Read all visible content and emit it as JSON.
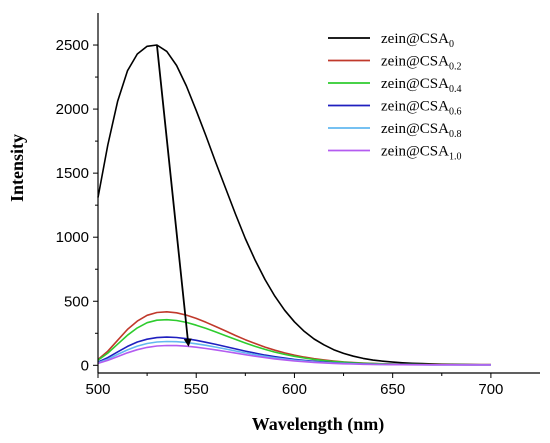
{
  "chart_data": {
    "type": "line",
    "title": "",
    "xlabel": "Wavelength (nm)",
    "ylabel": "Intensity",
    "xlim": [
      500,
      725
    ],
    "ylim": [
      -60,
      2750
    ],
    "x_ticks": [
      500,
      550,
      600,
      650,
      700
    ],
    "y_ticks": [
      0,
      500,
      1000,
      1500,
      2000,
      2500
    ],
    "grid": false,
    "legend_position": "top-right",
    "x": [
      500,
      505,
      510,
      515,
      520,
      525,
      530,
      535,
      540,
      545,
      550,
      555,
      560,
      565,
      570,
      575,
      580,
      585,
      590,
      595,
      600,
      605,
      610,
      615,
      620,
      625,
      630,
      635,
      640,
      645,
      650,
      655,
      660,
      665,
      670,
      675,
      680,
      685,
      690,
      695,
      700
    ],
    "series": [
      {
        "name": "zein@CSA",
        "subscript": "0",
        "color": "#000000",
        "values": [
          1310,
          1720,
          2060,
          2300,
          2430,
          2490,
          2500,
          2450,
          2340,
          2180,
          1990,
          1790,
          1580,
          1380,
          1180,
          990,
          820,
          670,
          540,
          430,
          340,
          265,
          205,
          160,
          122,
          93,
          71,
          54,
          41,
          32,
          25,
          20,
          16,
          13,
          11,
          9,
          8,
          7,
          6,
          5,
          5
        ]
      },
      {
        "name": "zein@CSA",
        "subscript": "0.2",
        "color": "#c0392b",
        "values": [
          45,
          110,
          195,
          280,
          345,
          390,
          412,
          418,
          410,
          392,
          366,
          336,
          302,
          268,
          233,
          200,
          170,
          142,
          118,
          97,
          79,
          64,
          52,
          42,
          34,
          27,
          22,
          18,
          15,
          12,
          10,
          9,
          8,
          7,
          6,
          6,
          5,
          5,
          5,
          5,
          5
        ]
      },
      {
        "name": "zein@CSA",
        "subscript": "0.4",
        "color": "#2ecc2e",
        "values": [
          40,
          95,
          165,
          235,
          292,
          333,
          352,
          356,
          350,
          335,
          313,
          288,
          260,
          231,
          202,
          174,
          148,
          124,
          103,
          85,
          70,
          57,
          46,
          37,
          30,
          24,
          20,
          16,
          13,
          11,
          9,
          8,
          7,
          6,
          5,
          5,
          5,
          5,
          4,
          4,
          4
        ]
      },
      {
        "name": "zein@CSA",
        "subscript": "0.6",
        "color": "#1f1fbf",
        "values": [
          25,
          60,
          105,
          148,
          182,
          204,
          216,
          220,
          217,
          208,
          195,
          180,
          163,
          146,
          128,
          111,
          95,
          80,
          67,
          56,
          46,
          38,
          31,
          25,
          20,
          16,
          13,
          11,
          9,
          8,
          7,
          6,
          5,
          5,
          4,
          4,
          4,
          4,
          4,
          4,
          4
        ]
      },
      {
        "name": "zein@CSA",
        "subscript": "0.8",
        "color": "#63b8f0",
        "values": [
          20,
          48,
          85,
          120,
          150,
          170,
          182,
          186,
          184,
          178,
          168,
          156,
          142,
          127,
          112,
          97,
          83,
          70,
          59,
          49,
          40,
          33,
          27,
          22,
          18,
          15,
          12,
          10,
          8,
          7,
          6,
          5,
          5,
          4,
          4,
          4,
          4,
          4,
          4,
          4,
          4
        ]
      },
      {
        "name": "zein@CSA",
        "subscript": "1.0",
        "color": "#b45cf0",
        "values": [
          15,
          38,
          68,
          98,
          122,
          140,
          151,
          155,
          154,
          149,
          141,
          131,
          120,
          108,
          95,
          83,
          71,
          60,
          50,
          42,
          34,
          28,
          23,
          19,
          15,
          12,
          10,
          8,
          7,
          6,
          5,
          5,
          4,
          4,
          4,
          4,
          4,
          3,
          3,
          3,
          3
        ]
      }
    ],
    "annotations": [
      {
        "type": "arrow",
        "from": {
          "x": 530,
          "y": 2500
        },
        "to": {
          "x": 546,
          "y": 160
        },
        "color": "#000000"
      }
    ]
  }
}
